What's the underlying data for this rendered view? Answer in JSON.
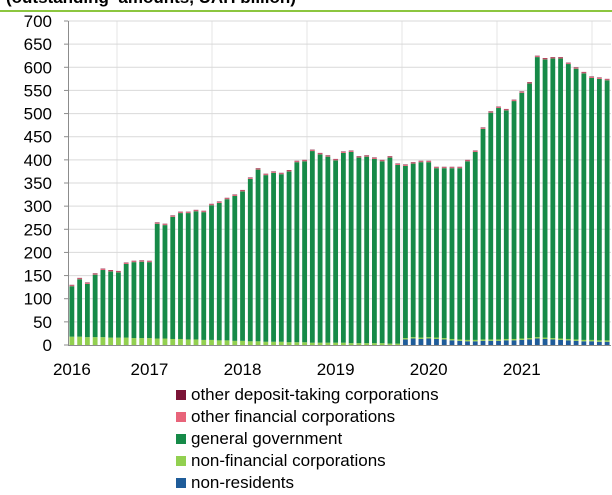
{
  "chart_data": {
    "type": "bar",
    "stacked": true,
    "title": "",
    "subtitle": "(outstanding  amounts, UAH billion)",
    "xlabel": "",
    "ylabel": "",
    "ylim": [
      0,
      700
    ],
    "y_ticks": [
      0,
      50,
      100,
      150,
      200,
      250,
      300,
      350,
      400,
      450,
      500,
      550,
      600,
      650,
      700
    ],
    "x_ticks": [
      {
        "label": "2016",
        "at": "2016-03"
      },
      {
        "label": "2017",
        "at": "2017-01"
      },
      {
        "label": "2018",
        "at": "2018-01"
      },
      {
        "label": "2019",
        "at": "2019-01"
      },
      {
        "label": "2020",
        "at": "2020-01"
      },
      {
        "label": "2021",
        "at": "2021-01"
      }
    ],
    "grid": true,
    "legend_position": "bottom",
    "categories": [
      "2016-03",
      "2016-04",
      "2016-05",
      "2016-06",
      "2016-07",
      "2016-08",
      "2016-09",
      "2016-10",
      "2016-11",
      "2016-12",
      "2017-01",
      "2017-02",
      "2017-03",
      "2017-04",
      "2017-05",
      "2017-06",
      "2017-07",
      "2017-08",
      "2017-09",
      "2017-10",
      "2017-11",
      "2017-12",
      "2018-01",
      "2018-02",
      "2018-03",
      "2018-04",
      "2018-05",
      "2018-06",
      "2018-07",
      "2018-08",
      "2018-09",
      "2018-10",
      "2018-11",
      "2018-12",
      "2019-01",
      "2019-02",
      "2019-03",
      "2019-04",
      "2019-05",
      "2019-06",
      "2019-07",
      "2019-08",
      "2019-09",
      "2019-10",
      "2019-11",
      "2019-12",
      "2020-01",
      "2020-02",
      "2020-03",
      "2020-04",
      "2020-05",
      "2020-06",
      "2020-07",
      "2020-08",
      "2020-09",
      "2020-10",
      "2020-11",
      "2020-12",
      "2021-01",
      "2021-02",
      "2021-03",
      "2021-04",
      "2021-05",
      "2021-06",
      "2021-07",
      "2021-08",
      "2021-09",
      "2021-10",
      "2021-11",
      "2021-12"
    ],
    "series": [
      {
        "name": "non-residents",
        "color": "#1f5c99",
        "values": [
          0,
          0,
          0,
          0,
          0,
          0,
          0,
          0,
          0,
          0,
          0,
          0,
          0,
          0,
          0,
          0,
          0,
          0,
          0,
          0,
          0,
          0,
          0,
          0,
          0,
          0,
          0,
          0,
          0,
          0,
          0,
          0,
          0,
          0,
          0,
          0,
          0,
          0,
          0,
          0,
          0,
          0,
          0,
          12,
          14,
          13,
          14,
          13,
          12,
          10,
          9,
          8,
          8,
          9,
          9,
          9,
          10,
          10,
          11,
          12,
          14,
          13,
          12,
          11,
          10,
          9,
          8,
          8,
          7,
          7
        ]
      },
      {
        "name": "non-financial corporations",
        "color": "#92d050",
        "values": [
          18,
          18,
          17,
          17,
          17,
          16,
          16,
          16,
          15,
          15,
          15,
          14,
          14,
          13,
          13,
          12,
          12,
          11,
          11,
          10,
          10,
          9,
          9,
          8,
          8,
          7,
          7,
          7,
          6,
          6,
          6,
          5,
          5,
          5,
          5,
          5,
          4,
          4,
          4,
          4,
          4,
          3,
          3,
          3,
          3,
          3,
          3,
          3,
          3,
          3,
          3,
          3,
          3,
          3,
          3,
          3,
          3,
          3,
          3,
          3,
          3,
          3,
          3,
          3,
          3,
          3,
          3,
          3,
          3,
          3
        ]
      },
      {
        "name": "general government",
        "color": "#168a48",
        "values": [
          109,
          124,
          115,
          135,
          145,
          143,
          141,
          159,
          164,
          165,
          164,
          248,
          245,
          264,
          272,
          273,
          277,
          276,
          291,
          297,
          305,
          313,
          323,
          351,
          371,
          360,
          365,
          362,
          369,
          389,
          391,
          414,
          407,
          402,
          394,
          410,
          413,
          401,
          403,
          398,
          393,
          402,
          386,
          372,
          375,
          379,
          378,
          366,
          367,
          369,
          370,
          386,
          406,
          455,
          490,
          500,
          494,
          514,
          531,
          550,
          605,
          601,
          604,
          605,
          594,
          585,
          576,
          566,
          565,
          562
        ]
      },
      {
        "name": "other financial corporations",
        "color": "#e8647a",
        "values": [
          2,
          2,
          2,
          2,
          2,
          2,
          2,
          2,
          2,
          2,
          2,
          2,
          2,
          2,
          2,
          2,
          2,
          2,
          2,
          2,
          2,
          2,
          2,
          2,
          2,
          2,
          2,
          2,
          2,
          2,
          2,
          2,
          2,
          2,
          2,
          2,
          2,
          2,
          2,
          2,
          2,
          2,
          2,
          2,
          2,
          2,
          2,
          2,
          2,
          2,
          2,
          2,
          2,
          2,
          2,
          2,
          2,
          2,
          2,
          2,
          2,
          2,
          2,
          2,
          2,
          2,
          2,
          2,
          2,
          2
        ]
      },
      {
        "name": "other deposit-taking corporations",
        "color": "#7b1436",
        "values": [
          1,
          1,
          1,
          1,
          1,
          1,
          1,
          1,
          1,
          1,
          1,
          1,
          1,
          1,
          1,
          1,
          1,
          1,
          1,
          1,
          1,
          1,
          1,
          1,
          1,
          1,
          1,
          1,
          1,
          1,
          1,
          1,
          1,
          1,
          1,
          1,
          1,
          1,
          1,
          1,
          1,
          1,
          1,
          1,
          1,
          1,
          1,
          1,
          1,
          1,
          1,
          1,
          1,
          1,
          1,
          1,
          1,
          1,
          1,
          1,
          1,
          1,
          1,
          1,
          1,
          1,
          1,
          1,
          1,
          1
        ]
      }
    ]
  }
}
